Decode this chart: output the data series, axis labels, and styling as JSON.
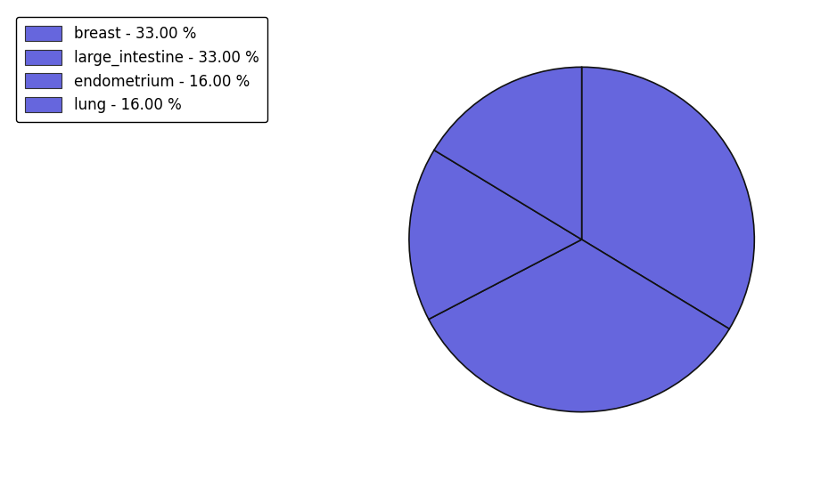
{
  "labels": [
    "breast",
    "large_intestine",
    "endometrium",
    "lung"
  ],
  "values": [
    33.0,
    33.0,
    16.0,
    16.0
  ],
  "slice_color": "#6666dd",
  "edge_color": "#111111",
  "legend_labels": [
    "breast - 33.00 %",
    "large_intestine - 33.00 %",
    "endometrium - 16.00 %",
    "lung - 16.00 %"
  ],
  "startangle": 90,
  "background_color": "#ffffff",
  "legend_fontsize": 12,
  "figsize": [
    9.39,
    5.38
  ],
  "dpi": 100
}
